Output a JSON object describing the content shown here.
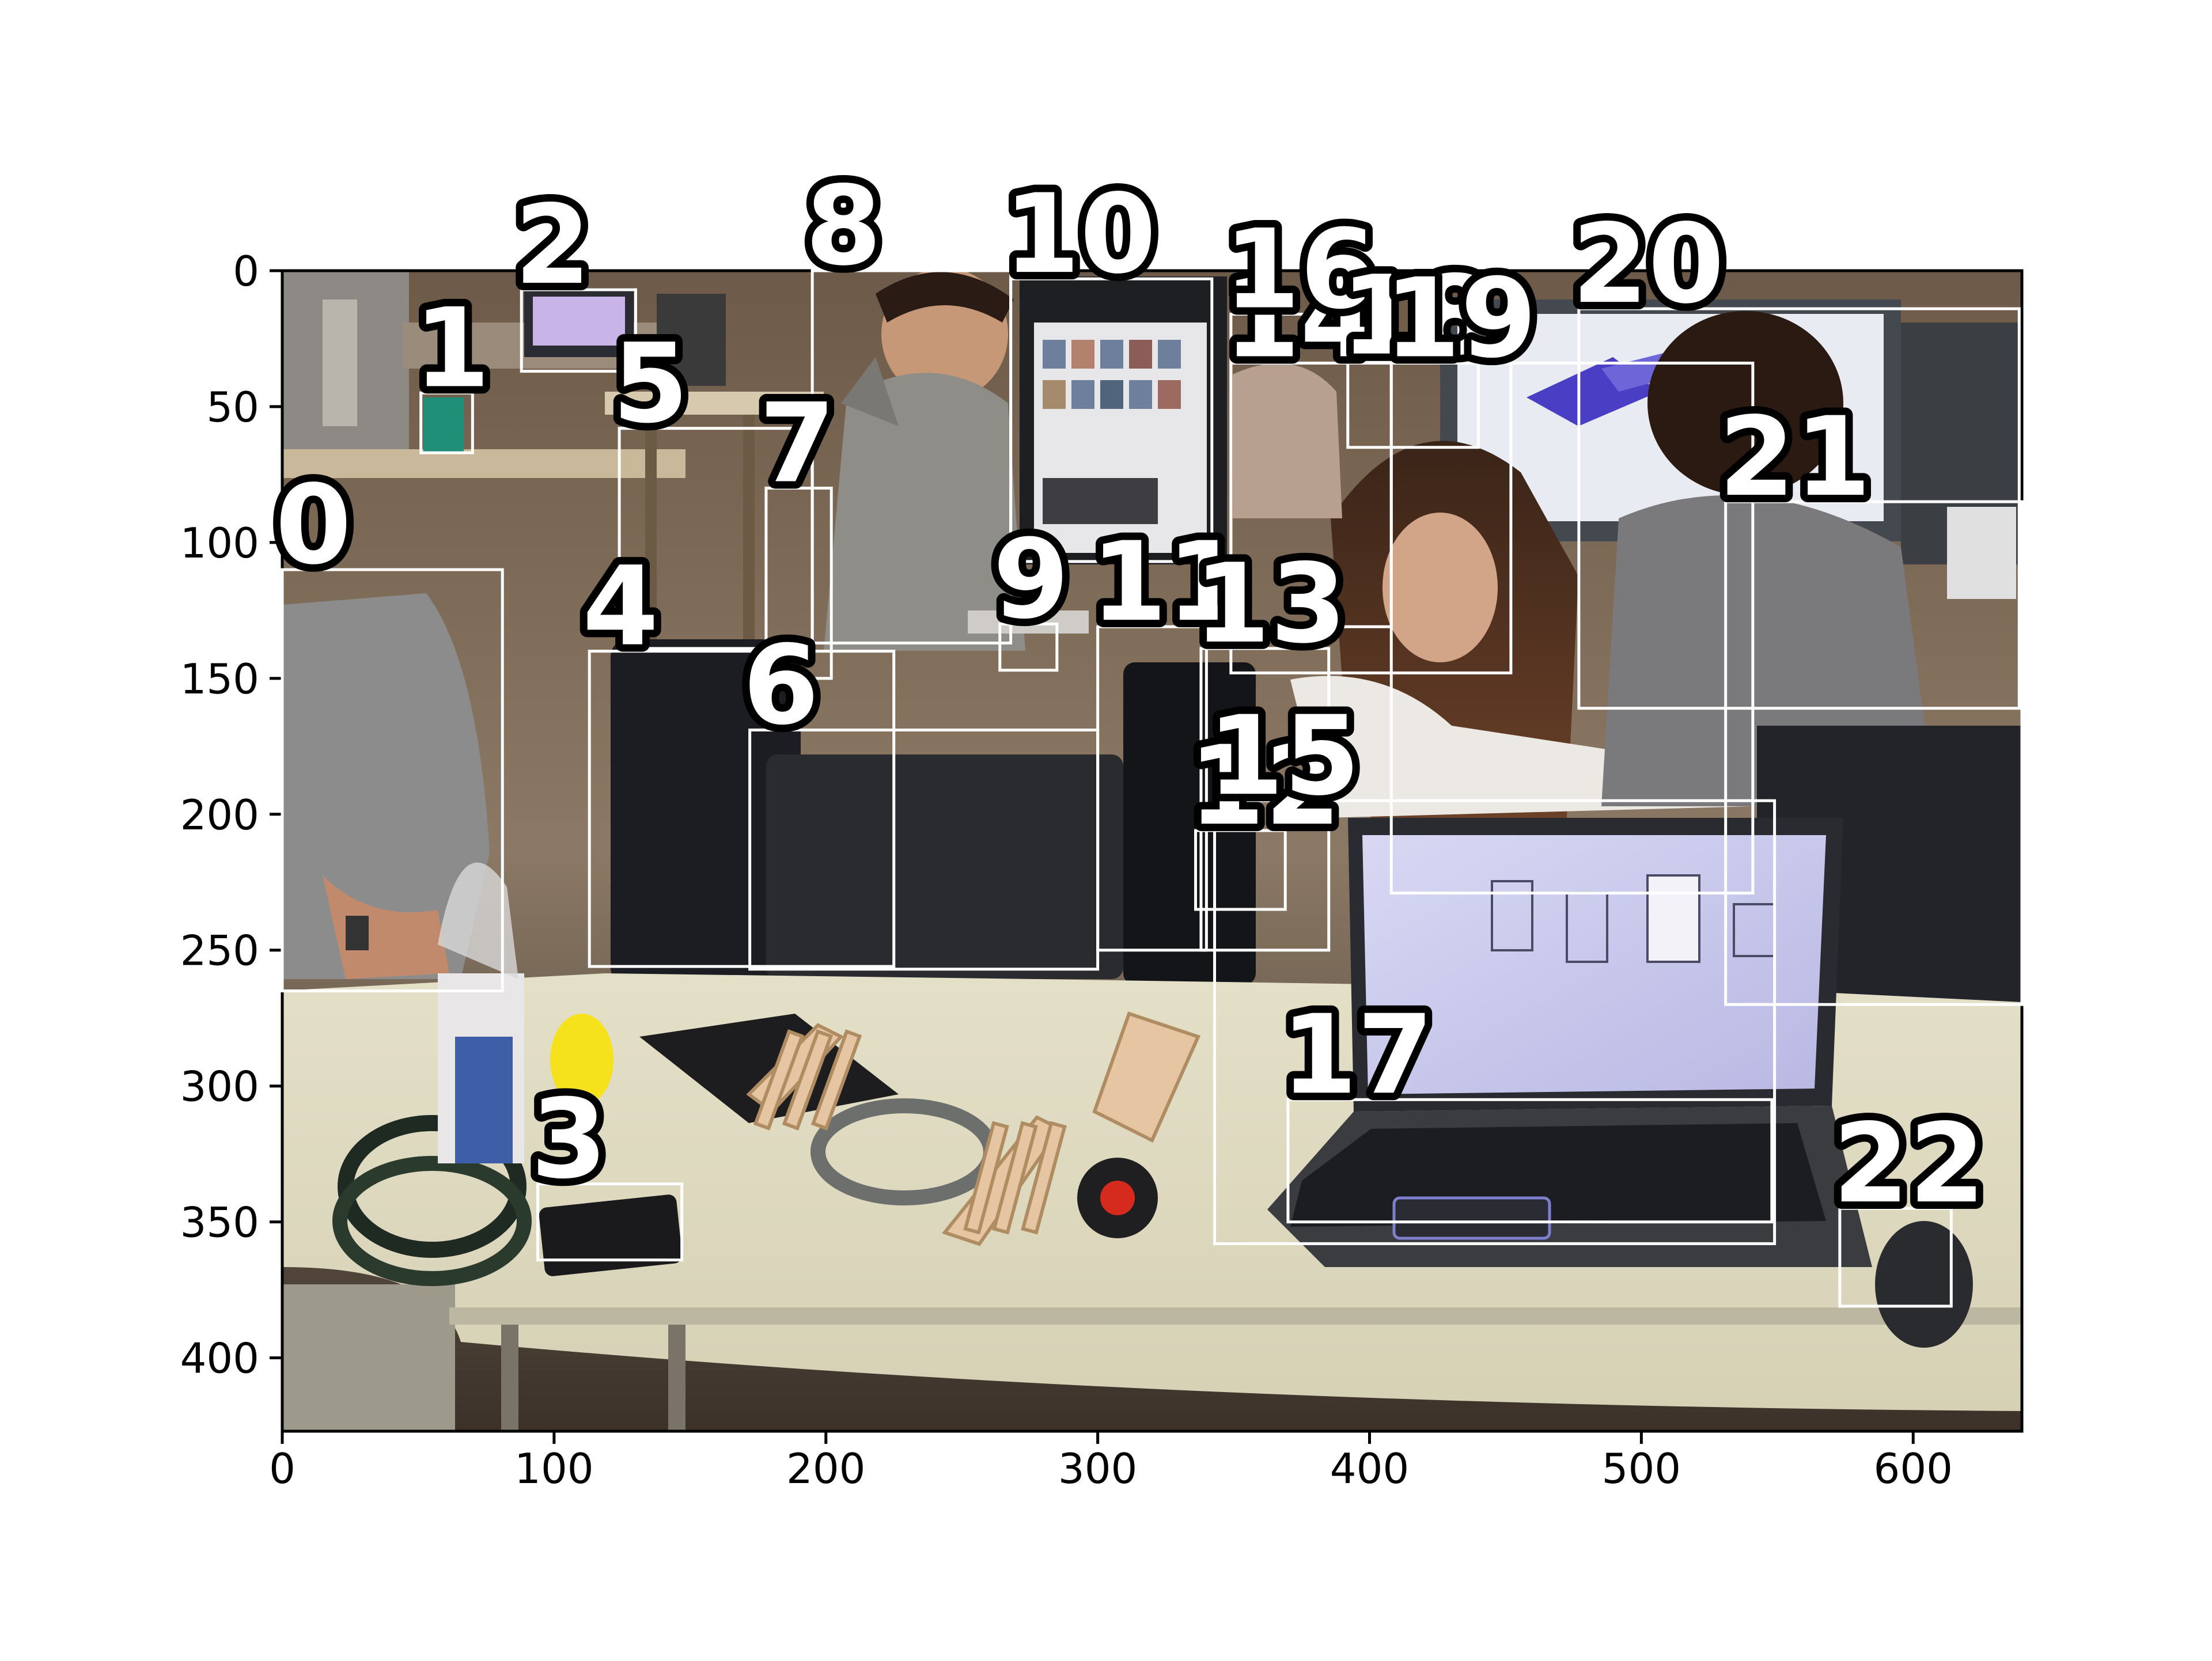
{
  "figure": {
    "kind": "annotated photo with numbered bounding boxes",
    "scene": "maker-space workshop: people at computers, laptop with 3D CAD model of a chair, laser-cut wooden chair parts, wire spools, tape measure, phone, mouse",
    "colors": {
      "box_stroke": "#ffffff",
      "label_fill": "#ffffff",
      "label_outline": "#000000",
      "axis": "#000000",
      "page_bg": "#ffffff"
    }
  },
  "axes": {
    "x_ticks": [
      "0",
      "100",
      "200",
      "300",
      "400",
      "500",
      "600"
    ],
    "y_ticks": [
      "0",
      "50",
      "100",
      "150",
      "200",
      "250",
      "300",
      "350",
      "400"
    ],
    "xlim": [
      0,
      640
    ],
    "ylim": [
      427,
      0
    ]
  },
  "chart_data": {
    "type": "scatter",
    "title": "",
    "xlabel": "",
    "ylabel": "",
    "xlim": [
      0,
      640
    ],
    "ylim": [
      427,
      0
    ],
    "boxes": [
      {
        "label": "0",
        "x0": 0,
        "y0": 110,
        "x1": 81,
        "y1": 265
      },
      {
        "label": "1",
        "x0": 51,
        "y0": 45,
        "x1": 70,
        "y1": 67
      },
      {
        "label": "2",
        "x0": 88,
        "y0": 7,
        "x1": 130,
        "y1": 37
      },
      {
        "label": "3",
        "x0": 94,
        "y0": 336,
        "x1": 147,
        "y1": 364
      },
      {
        "label": "4",
        "x0": 113,
        "y0": 140,
        "x1": 225,
        "y1": 256
      },
      {
        "label": "5",
        "x0": 124,
        "y0": 58,
        "x1": 195,
        "y1": 139
      },
      {
        "label": "6",
        "x0": 172,
        "y0": 169,
        "x1": 300,
        "y1": 257
      },
      {
        "label": "7",
        "x0": 178,
        "y0": 80,
        "x1": 202,
        "y1": 150
      },
      {
        "label": "8",
        "x0": 195,
        "y0": 0,
        "x1": 268,
        "y1": 137
      },
      {
        "label": "9",
        "x0": 264,
        "y0": 130,
        "x1": 285,
        "y1": 147
      },
      {
        "label": "10",
        "x0": 268,
        "y0": 3,
        "x1": 342,
        "y1": 107
      },
      {
        "label": "11",
        "x0": 300,
        "y0": 131,
        "x1": 340,
        "y1": 250
      },
      {
        "label": "12",
        "x0": 336,
        "y0": 206,
        "x1": 369,
        "y1": 235
      },
      {
        "label": "13",
        "x0": 338,
        "y0": 139,
        "x1": 385,
        "y1": 250
      },
      {
        "label": "14",
        "x0": 349,
        "y0": 34,
        "x1": 452,
        "y1": 148
      },
      {
        "label": "15",
        "x0": 343,
        "y0": 195,
        "x1": 549,
        "y1": 358
      },
      {
        "label": "16",
        "x0": 349,
        "y0": 16,
        "x1": 408,
        "y1": 131
      },
      {
        "label": "17",
        "x0": 370,
        "y0": 305,
        "x1": 548,
        "y1": 350
      },
      {
        "label": "18",
        "x0": 392,
        "y0": 33,
        "x1": 440,
        "y1": 65
      },
      {
        "label": "19",
        "x0": 408,
        "y0": 34,
        "x1": 541,
        "y1": 229
      },
      {
        "label": "20",
        "x0": 477,
        "y0": 14,
        "x1": 639,
        "y1": 161
      },
      {
        "label": "21",
        "x0": 531,
        "y0": 85,
        "x1": 640,
        "y1": 270
      },
      {
        "label": "22",
        "x0": 573,
        "y0": 345,
        "x1": 614,
        "y1": 381
      }
    ]
  }
}
